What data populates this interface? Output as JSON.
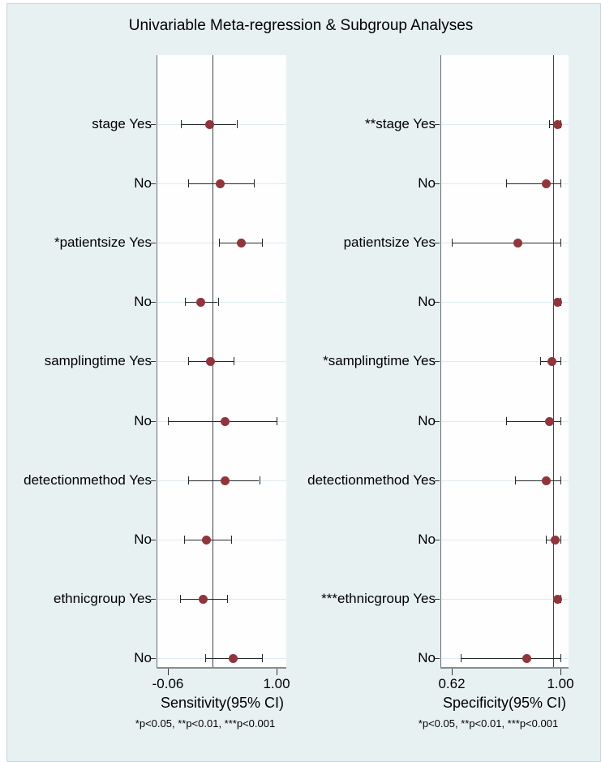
{
  "title": "Univariable Meta-regression & Subgroup Analyses",
  "colors": {
    "background": "#e8f1f2",
    "plot_background": "#fefefe",
    "marker": "#90353b",
    "ci_line": "#24282b",
    "reference_line": "#40464b",
    "gridline": "#dfeaee",
    "axis_line": "#666c70"
  },
  "chart_data": [
    {
      "type": "forest",
      "panel": "sensitivity",
      "xlabel": "Sensitivity(95% CI)",
      "footnote": "*p<0.05, **p<0.01, ***p<0.001",
      "xticks": [
        {
          "value": -0.06,
          "label": "-0.06"
        },
        {
          "value": 1.0,
          "label": "1.00"
        }
      ],
      "ref_line": 0.375,
      "rows": [
        {
          "label": "stage Yes",
          "est": 0.34,
          "lo": 0.07,
          "hi": 0.61
        },
        {
          "label": "No",
          "est": 0.45,
          "lo": 0.14,
          "hi": 0.78
        },
        {
          "label": "*patientsize Yes",
          "est": 0.65,
          "lo": 0.44,
          "hi": 0.86
        },
        {
          "label": "No",
          "est": 0.26,
          "lo": 0.11,
          "hi": 0.43
        },
        {
          "label": "samplingtime Yes",
          "est": 0.35,
          "lo": 0.14,
          "hi": 0.58
        },
        {
          "label": "No",
          "est": 0.49,
          "lo": -0.06,
          "hi": 1.0
        },
        {
          "label": "detectionmethod Yes",
          "est": 0.49,
          "lo": 0.14,
          "hi": 0.83
        },
        {
          "label": "No",
          "est": 0.31,
          "lo": 0.1,
          "hi": 0.56
        },
        {
          "label": "ethnicgroup Yes",
          "est": 0.28,
          "lo": 0.06,
          "hi": 0.52
        },
        {
          "label": "No",
          "est": 0.57,
          "lo": 0.3,
          "hi": 0.86
        }
      ]
    },
    {
      "type": "forest",
      "panel": "specificity",
      "xlabel": "Specificity(95% CI)",
      "footnote": "*p<0.05, **p<0.01, ***p<0.001",
      "xticks": [
        {
          "value": 0.62,
          "label": "0.62"
        },
        {
          "value": 1.0,
          "label": "1.00"
        }
      ],
      "ref_line": 0.974,
      "rows": [
        {
          "label": "**stage Yes",
          "est": 0.99,
          "lo": 0.96,
          "hi": 1.0
        },
        {
          "label": "No",
          "est": 0.95,
          "lo": 0.81,
          "hi": 1.0
        },
        {
          "label": "patientsize Yes",
          "est": 0.85,
          "lo": 0.62,
          "hi": 1.0
        },
        {
          "label": "No",
          "est": 0.99,
          "lo": 0.99,
          "hi": 1.0
        },
        {
          "label": "*samplingtime Yes",
          "est": 0.97,
          "lo": 0.93,
          "hi": 1.0
        },
        {
          "label": "No",
          "est": 0.96,
          "lo": 0.81,
          "hi": 1.0
        },
        {
          "label": "detectionmethod Yes",
          "est": 0.95,
          "lo": 0.84,
          "hi": 1.0
        },
        {
          "label": "No",
          "est": 0.98,
          "lo": 0.95,
          "hi": 1.0
        },
        {
          "label": "***ethnicgroup Yes",
          "est": 0.99,
          "lo": 0.99,
          "hi": 1.0
        },
        {
          "label": "No",
          "est": 0.88,
          "lo": 0.65,
          "hi": 1.0
        }
      ]
    }
  ]
}
